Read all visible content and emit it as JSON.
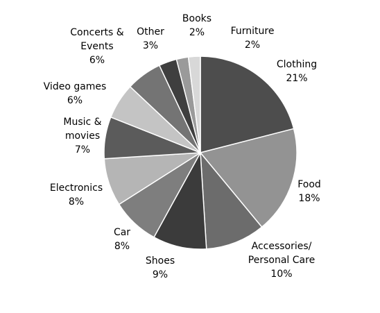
{
  "chart_data": {
    "type": "pie",
    "title": "",
    "start_angle_deg": 0,
    "direction": "clockwise",
    "slices": [
      {
        "name_lines": [
          "Clothing"
        ],
        "pct_label": "21%",
        "value": 21,
        "color": "#4d4d4d"
      },
      {
        "name_lines": [
          "Food"
        ],
        "pct_label": "18%",
        "value": 18,
        "color": "#939393"
      },
      {
        "name_lines": [
          "Accessories/",
          "Personal Care"
        ],
        "pct_label": "10%",
        "value": 10,
        "color": "#6c6c6c"
      },
      {
        "name_lines": [
          "Shoes"
        ],
        "pct_label": "9%",
        "value": 9,
        "color": "#3b3b3b"
      },
      {
        "name_lines": [
          "Car"
        ],
        "pct_label": "8%",
        "value": 8,
        "color": "#7e7e7e"
      },
      {
        "name_lines": [
          "Electronics"
        ],
        "pct_label": "8%",
        "value": 8,
        "color": "#b5b5b5"
      },
      {
        "name_lines": [
          "Music &",
          "movies"
        ],
        "pct_label": "7%",
        "value": 7,
        "color": "#5b5b5b"
      },
      {
        "name_lines": [
          "Video games"
        ],
        "pct_label": "6%",
        "value": 6,
        "color": "#c4c4c4"
      },
      {
        "name_lines": [
          "Concerts &",
          "Events"
        ],
        "pct_label": "6%",
        "value": 6,
        "color": "#747474"
      },
      {
        "name_lines": [
          "Other"
        ],
        "pct_label": "3%",
        "value": 3,
        "color": "#3f3f3f"
      },
      {
        "name_lines": [
          "Books"
        ],
        "pct_label": "2%",
        "value": 2,
        "color": "#9a9a9a"
      },
      {
        "name_lines": [
          "Furniture"
        ],
        "pct_label": "2%",
        "value": 2,
        "color": "#d8d8d8"
      }
    ]
  }
}
